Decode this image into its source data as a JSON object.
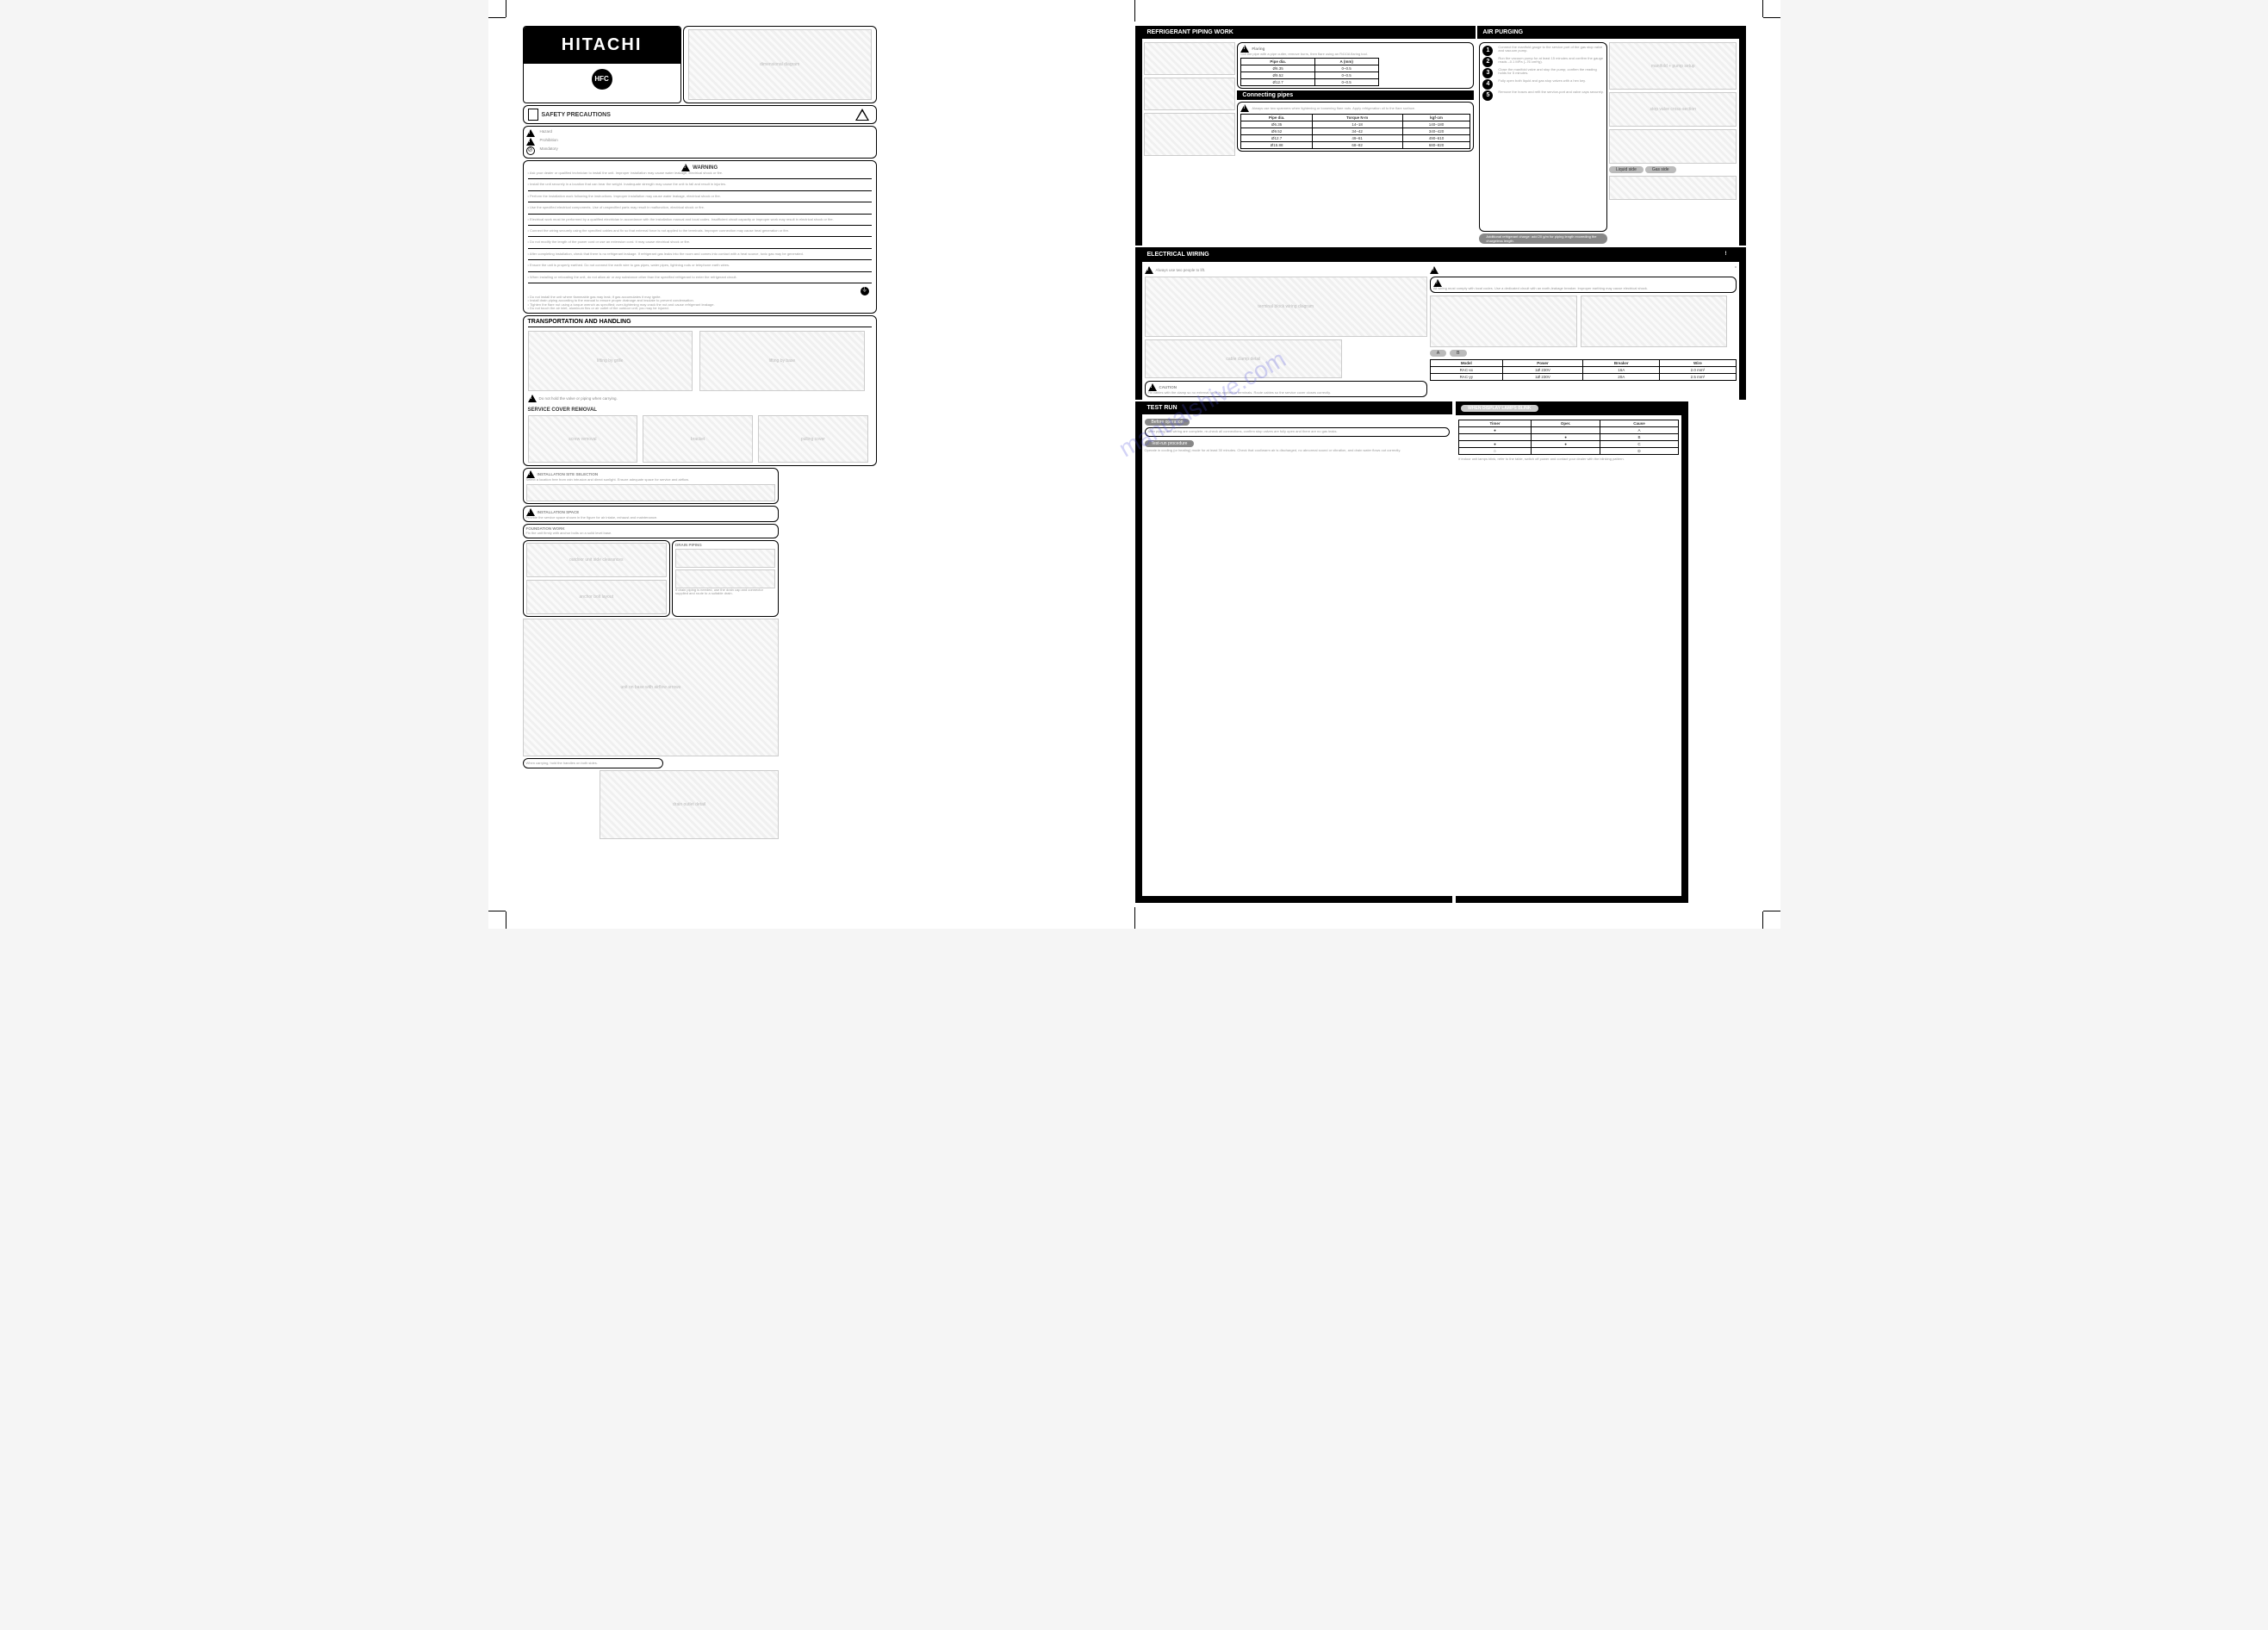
{
  "brand": "HITACHI",
  "hfc_badge": "HFC",
  "header_box2_placeholder": "dimensional diagram",
  "safety_header": "SAFETY PRECAUTIONS",
  "warning_word": "WARNING",
  "caution_word": "CAUTION",
  "symbol_marks": {
    "s1": "Hazard",
    "s2": "Prohibition",
    "s3": "Mandatory"
  },
  "warning_lines": [
    "Ask your dealer or qualified technician to install the unit. Improper installation may cause water leakage, electrical shock or fire.",
    "Install the unit securely in a location that can bear the weight. Inadequate strength may cause the unit to fall and result in injuries.",
    "Perform the installation work following the instructions. Improper installation may cause water leakage, electrical shock or fire.",
    "Use the specified electrical components. Use of unspecified parts may result in malfunction, electrical shock or fire.",
    "Electrical work must be performed by a qualified electrician in accordance with the installation manual and local codes. Insufficient circuit capacity or improper work may result in electrical shock or fire.",
    "Connect the wiring securely using the specified cables and fix so that external force is not applied to the terminals. Improper connection may cause heat generation or fire.",
    "Do not modify the length of the power cord or use an extension cord. It may cause electrical shock or fire.",
    "After completing installation, check that there is no refrigerant leakage. If refrigerant gas leaks into the room and comes into contact with a heat source, toxic gas may be generated.",
    "Ensure the unit is properly earthed. Do not connect the earth wire to gas pipes, water pipes, lightning rods or telephone earth wires.",
    "When installing or relocating the unit, do not allow air or any substance other than the specified refrigerant to enter the refrigerant circuit."
  ],
  "caution_lines": [
    "Do not install the unit where flammable gas may leak; if gas accumulates it may ignite.",
    "Install drain piping according to the manual to ensure proper drainage and insulate to prevent condensation.",
    "Tighten the flare nut using a torque wrench as specified; over-tightening may crack the nut and cause refrigerant leakage.",
    "Do not touch the air inlet, aluminum fins or air outlet of the outdoor unit; you may be injured."
  ],
  "transport_section": "TRANSPORTATION AND HANDLING",
  "transport_img1": "lifting by grille",
  "transport_img2": "lifting by base",
  "service_cover_section": "SERVICE COVER REMOVAL",
  "service_imgs": [
    "screw removal",
    "bracket",
    "pulling cover"
  ],
  "small_caution_1": "Do not hold the valve or piping when carrying.",
  "small_caution_2": "When carrying, hold the handles on both sides.",
  "small_caution_3": "Always use two people to lift.",
  "col2_box1_title": "INSTALLATION SITE SELECTION",
  "col2_box1_body": "Select a location free from rain intrusion and direct sunlight. Ensure adequate space for service and airflow.",
  "col2_box2_title": "INSTALLATION SPACE",
  "col2_box2_body": "Provide the service space shown in the figure for air intake, exhaust and maintenance.",
  "col2_box3_title": "FOUNDATION WORK",
  "col2_box3_body": "Fix the unit firmly with anchor bolts on a solid level base.",
  "col2_box4_title": "DRAIN PIPING",
  "col2_box4_body": "If drain piping is needed, use the drain cap and connector supplied and route to a suitable drain.",
  "col2_diag1": "outdoor unit side clearances",
  "col2_diag2": "anchor bolt layout",
  "col2_diag3": "unit on base with airflow arrows",
  "col2_diag4": "drain outlet detail",
  "right_top_sec": "REFRIGERANT PIPING WORK",
  "flaring_title": "Flaring",
  "flaring_body": "Cut the pipe with a pipe cutter, remove burrs, then flare using an R410A flaring tool.",
  "flare_table": {
    "headers": [
      "Pipe dia.",
      "A (mm)"
    ],
    "rows": [
      [
        "Ø6.35",
        "0–0.5"
      ],
      [
        "Ø9.52",
        "0–0.5"
      ],
      [
        "Ø12.7",
        "0–0.5"
      ]
    ]
  },
  "conn_title": "Connecting pipes",
  "torque_table": {
    "headers": [
      "Pipe dia.",
      "Torque N·m",
      "kgf·cm"
    ],
    "rows": [
      [
        "Ø6.35",
        "14–18",
        "140–180"
      ],
      [
        "Ø9.52",
        "34–42",
        "340–420"
      ],
      [
        "Ø12.7",
        "49–61",
        "490–610"
      ],
      [
        "Ø15.88",
        "68–82",
        "680–820"
      ]
    ]
  },
  "conn_caution": "Always use two spanners when tightening or loosening flare nuts. Apply refrigeration oil to the flare surface.",
  "airpurge_sec": "AIR PURGING",
  "airpurge_steps": [
    "Connect the manifold gauge to the service port of the gas stop valve and vacuum pump.",
    "Run the vacuum pump for at least 15 minutes and confirm the gauge reads –0.1 MPa (–76 cmHg).",
    "Close the manifold valve and stop the pump; confirm the reading holds for 5 minutes.",
    "Fully open both liquid and gas stop valves with a hex key.",
    "Remove the hoses and refit the service-port and valve caps securely."
  ],
  "airpurge_diag": "manifold + pump setup",
  "valve_diag": "stop valve cross-section",
  "charge_note": "Additional refrigerant charge: add 20 g/m for piping length exceeding the chargeless length.",
  "elec_sec": "ELECTRICAL WIRING",
  "elec_caution_title": "CAUTION",
  "elec_caution_body": "All wiring must comply with local codes. Use a dedicated circuit with an earth-leakage breaker. Improper earthing may cause electrical shock.",
  "wiring_diag": "terminal block wiring diagram",
  "clamp_diag": "cable clamp detail",
  "spec_table": {
    "headers": [
      "Model",
      "Power",
      "Breaker",
      "Wire"
    ],
    "rows": [
      [
        "RAC-xx",
        "1Ø 230V",
        "16A",
        "2.0 mm²"
      ],
      [
        "RAC-yy",
        "1Ø 230V",
        "20A",
        "2.5 mm²"
      ]
    ]
  },
  "elec_box_caution": "Fix cables with the clamp so no external force is applied to terminals. Route cables so the service cover closes correctly.",
  "testrun_sec": "TEST RUN",
  "testrun_pre": "Before operation",
  "testrun_pre_body": "After piping and wiring are complete, re-check all connections, confirm stop valves are fully open and there are no gas leaks.",
  "testrun_proc": "Test-run procedure",
  "testrun_proc_body": "Operate in cooling (or heating) mode for at least 30 minutes. Check that cool/warm air is discharged, no abnormal sound or vibration, and drain water flows out correctly.",
  "remote_sec": "WHEN DISPLAY LAMPS BLINK",
  "remote_table": {
    "headers": [
      "Timer",
      "Oper.",
      "Cause"
    ],
    "rows": [
      [
        "●",
        "",
        "A"
      ],
      [
        "",
        "●",
        "B"
      ],
      [
        "●",
        "●",
        "C"
      ],
      [
        "○",
        "",
        "D"
      ]
    ]
  },
  "remote_body": "If indoor unit lamps blink, refer to the table, switch off power and contact your dealer with the blinking pattern.",
  "misc_label_a": "Liquid side",
  "misc_label_b": "Gas side",
  "watermark_text": "manualshive.com"
}
